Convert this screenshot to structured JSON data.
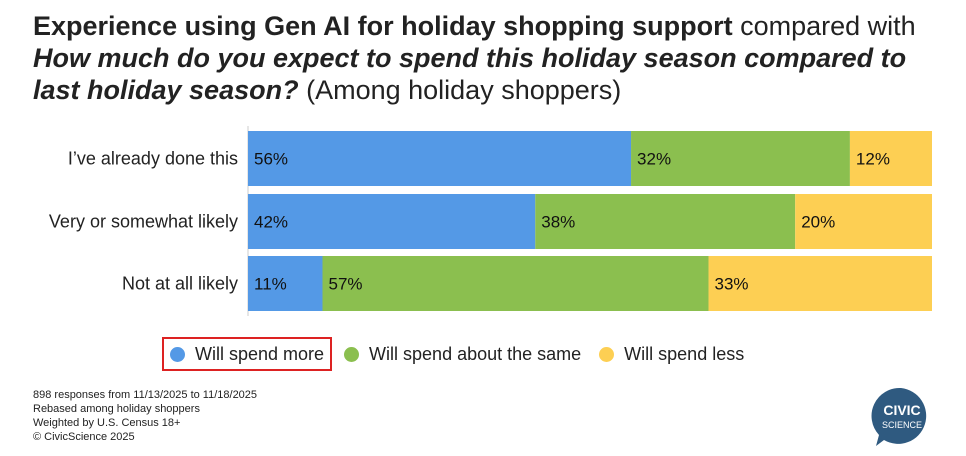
{
  "title": {
    "bold": "Experience using Gen AI for holiday shopping support",
    "normal": " compared with",
    "italic": "How much do you expect to spend this holiday season compared to last holiday season?",
    "note": " (Among holiday shoppers)"
  },
  "chart_data": {
    "type": "bar",
    "orientation": "horizontal",
    "stacked": true,
    "categories": [
      "I’ve already done this",
      "Very or somewhat likely",
      "Not at all likely"
    ],
    "series": [
      {
        "name": "Will spend more",
        "values": [
          56,
          42,
          11
        ],
        "color": "#5499e6"
      },
      {
        "name": "Will spend about the same",
        "values": [
          32,
          38,
          57
        ],
        "color": "#8bbf4f"
      },
      {
        "name": "Will spend less",
        "values": [
          12,
          20,
          33
        ],
        "color": "#fdcf53"
      }
    ],
    "value_suffix": "%",
    "legend": "bottom"
  },
  "footer": {
    "line1": "898 responses from 11/13/2025 to 11/18/2025",
    "line2": "Rebased among holiday shoppers",
    "line3": "Weighted by U.S. Census 18+",
    "line4": "© CivicScience 2025"
  },
  "logo": {
    "line1": "CIVIC",
    "line2": "SCIENCE",
    "color": "#2f5a80"
  }
}
